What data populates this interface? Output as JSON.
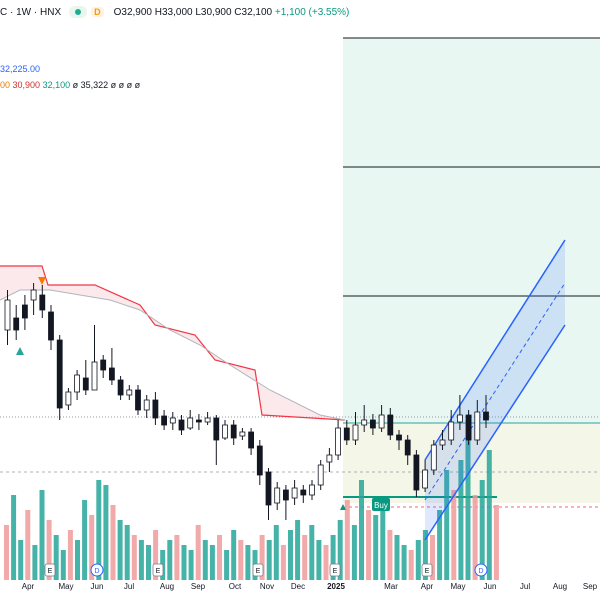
{
  "header": {
    "symbol": "C · 1W · HNX",
    "badge": "D",
    "open": "O32,900",
    "high": "H33,000",
    "low": "L30,900",
    "close": "C32,100",
    "change": "+1,100 (+3.55%)"
  },
  "indicators": {
    "line1": "32,225.00",
    "line2_a": "00",
    "line2_b": "30,900",
    "line2_c": "32,100",
    "line2_d": "ø 35,322 ø ø ø ø"
  },
  "buy_label": "Buy",
  "colors": {
    "up": "#089981",
    "down": "#131722",
    "cloud_line": "#f23645",
    "channel": "#2962ff",
    "vol_up": "#26a69a",
    "vol_down": "#ef9a9a",
    "fib": "#131722"
  },
  "event_markers": {
    "earnings": "E",
    "dividend": "D"
  },
  "x_axis": [
    "Apr",
    "May",
    "Jun",
    "Jul",
    "Aug",
    "Sep",
    "Oct",
    "Nov",
    "Dec",
    "2025",
    "Mar",
    "Apr",
    "May",
    "Jun",
    "Jul",
    "Aug",
    "Sep"
  ],
  "chart_data": {
    "type": "candlestick",
    "interval": "1W",
    "exchange": "HNX",
    "x_labels": [
      "Apr",
      "May",
      "Jun",
      "Jul",
      "Aug",
      "Sep",
      "Oct",
      "Nov",
      "Dec",
      "2025",
      "Mar",
      "Apr",
      "May",
      "Jun",
      "Jul",
      "Aug",
      "Sep"
    ],
    "last_candle": {
      "open": 32900,
      "high": 33000,
      "low": 30900,
      "close": 32100,
      "change": 1100,
      "change_pct": 3.55
    }
  }
}
